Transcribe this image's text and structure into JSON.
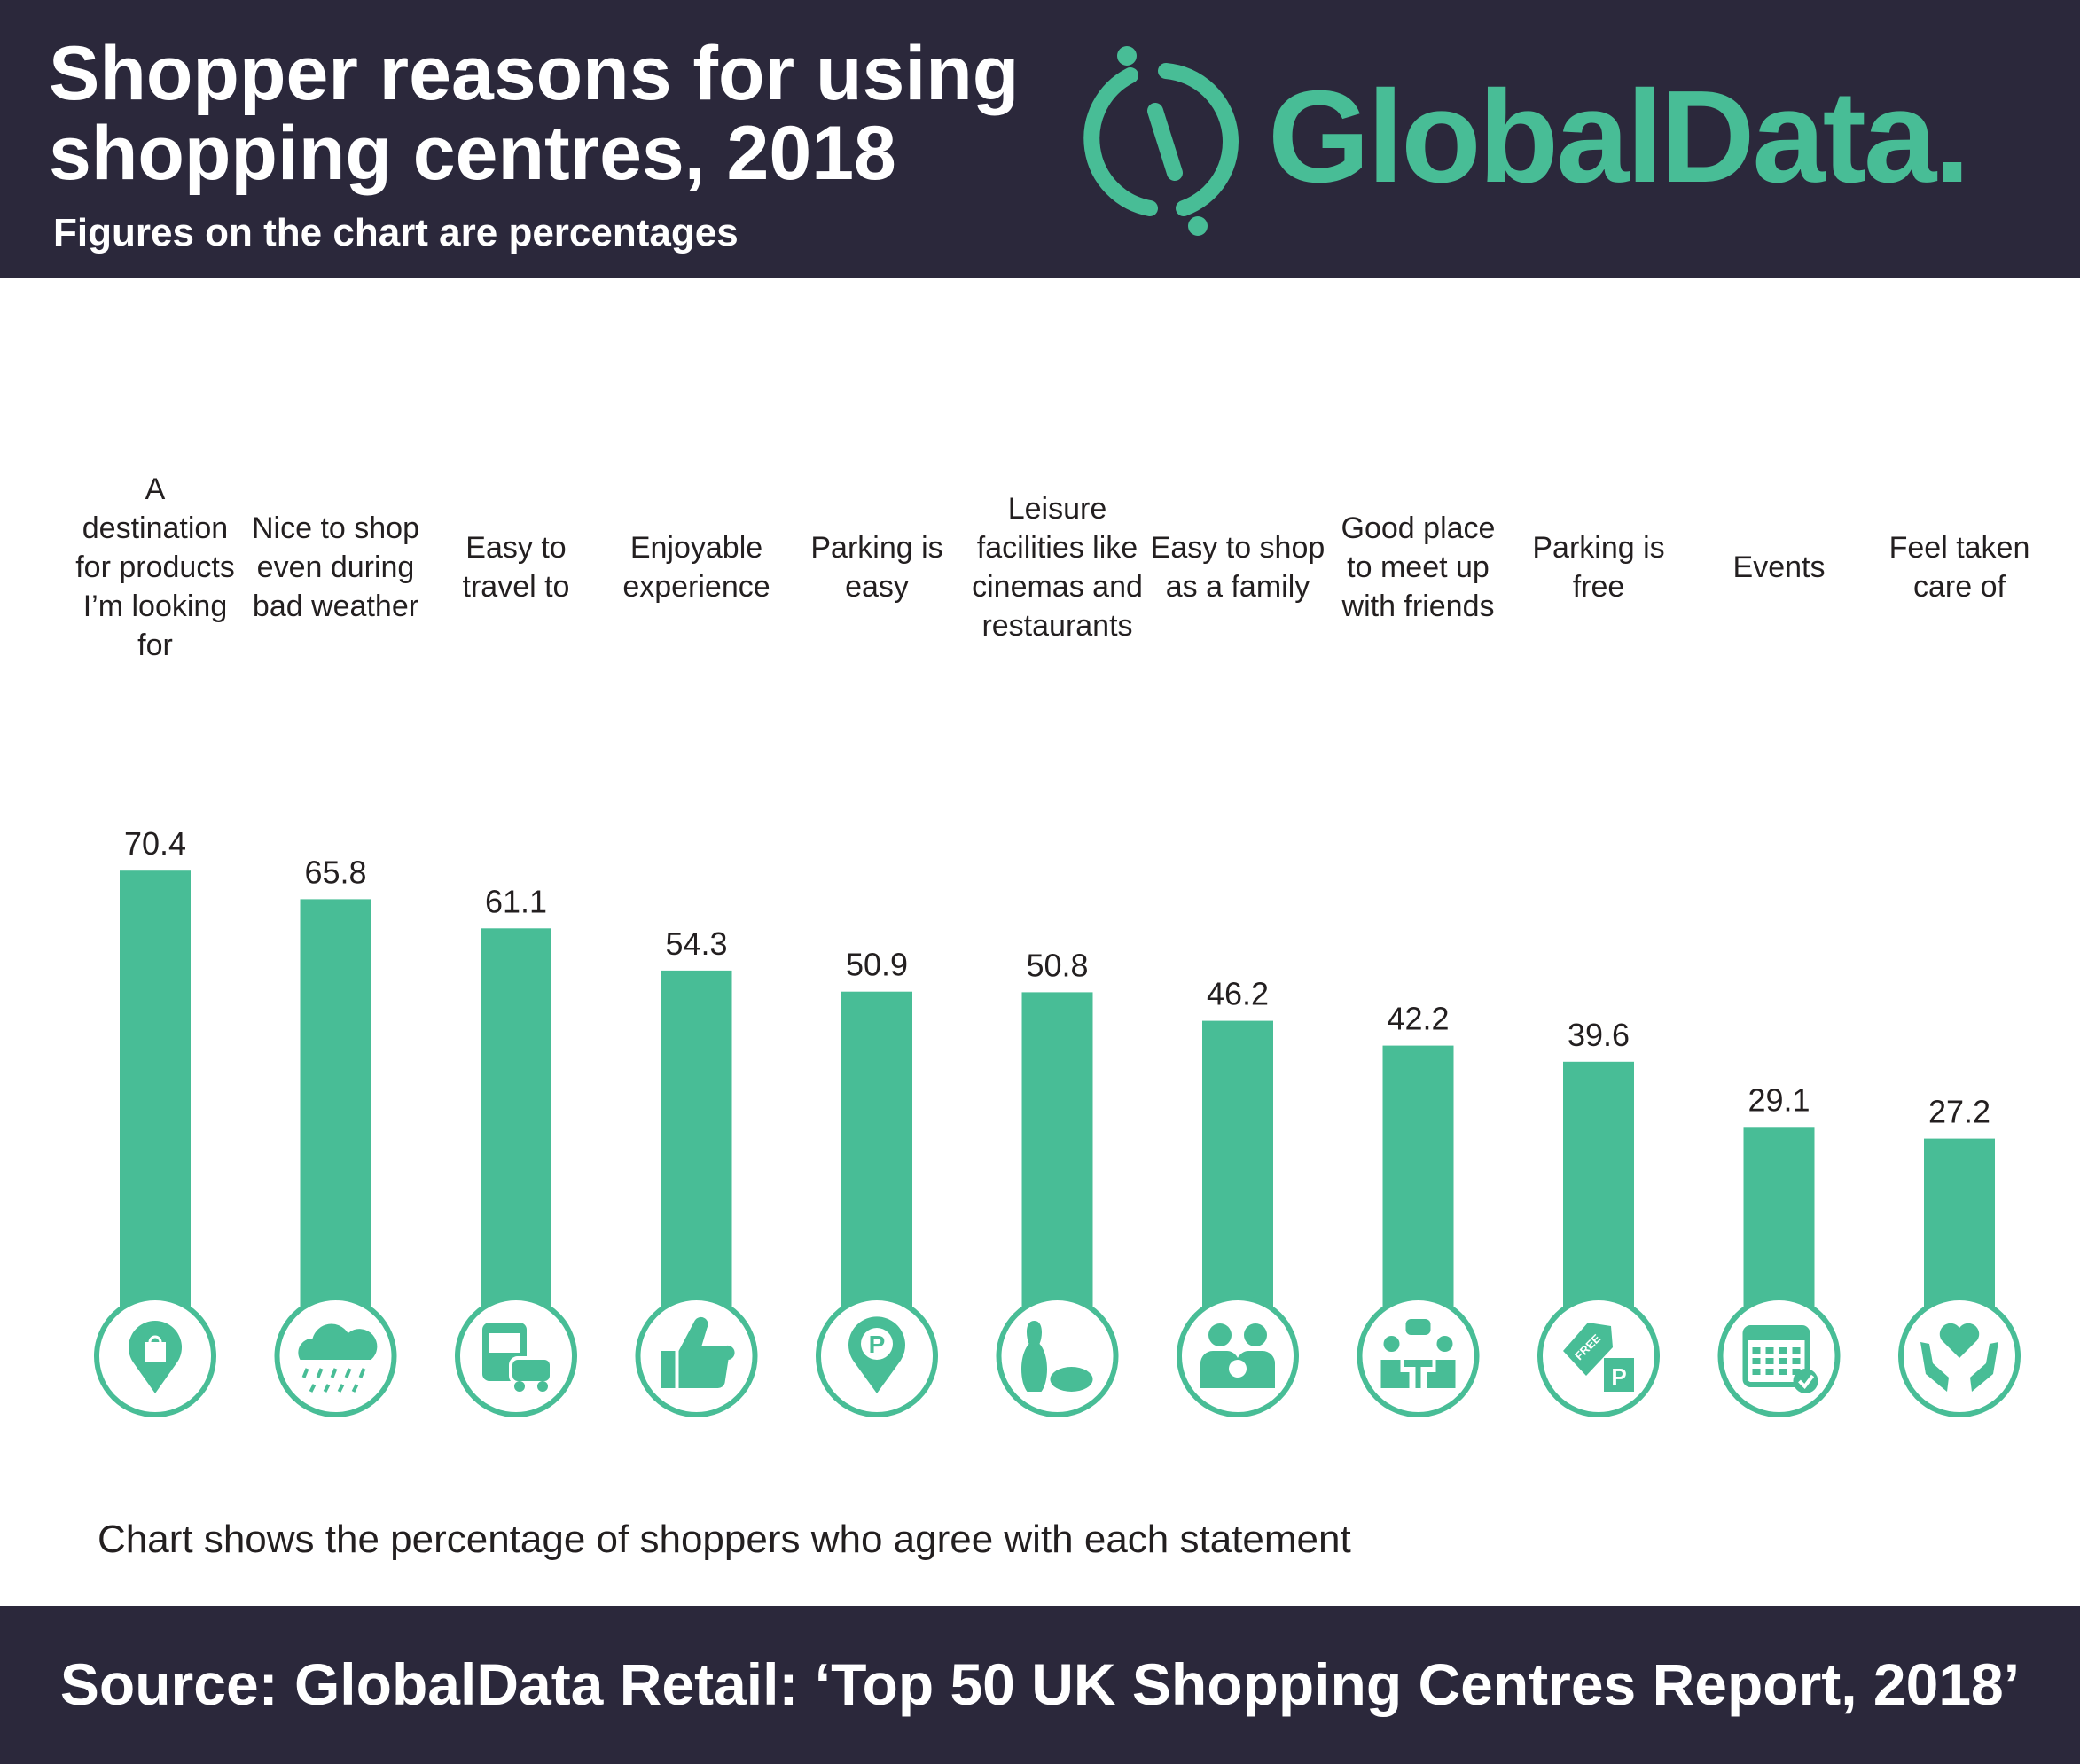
{
  "header": {
    "title": "Shopper reasons for using shopping centres, 2018",
    "subtitle": "Figures on the chart are percentages",
    "logo_text": "GlobalData."
  },
  "colors": {
    "background_dark": "#2b283b",
    "accent": "#48bd96",
    "text": "#231f20"
  },
  "chart_data": {
    "type": "bar",
    "title": "Shopper reasons for using shopping centres, 2018",
    "ylabel": "",
    "xlabel": "",
    "ylim": [
      0,
      100
    ],
    "grid": false,
    "categories": [
      "A\ndestination\nfor products\nI’m looking\nfor",
      "Nice to shop\neven during\nbad weather",
      "Easy to\ntravel to",
      "Enjoyable\nexperience",
      "Parking is\neasy",
      "Leisure\nfacilities like\ncinemas and\nrestaurants",
      "Easy to shop\nas a family",
      "Good place\nto meet up\nwith friends",
      "Parking is\nfree",
      "Events",
      "Feel taken\ncare of"
    ],
    "values": [
      70.4,
      65.8,
      61.1,
      54.3,
      50.9,
      50.8,
      46.2,
      42.2,
      39.6,
      29.1,
      27.2
    ],
    "value_labels": [
      "70.4",
      "65.8",
      "61.1",
      "54.3",
      "50.9",
      "50.8",
      "46.2",
      "42.2",
      "39.6",
      "29.1",
      "27.2"
    ],
    "icons": [
      "shopping-bag-location-icon",
      "rain-cloud-icon",
      "bus-car-icon",
      "thumbs-up-icon",
      "parking-location-icon",
      "bowling-icon",
      "family-icon",
      "meeting-friends-icon",
      "free-parking-tag-icon",
      "calendar-check-icon",
      "heart-hands-icon"
    ]
  },
  "note": "Chart shows the percentage of shoppers who agree with each statement",
  "footer": {
    "source": "Source: GlobalData Retail: ‘Top 50 UK Shopping Centres Report, 2018’"
  }
}
